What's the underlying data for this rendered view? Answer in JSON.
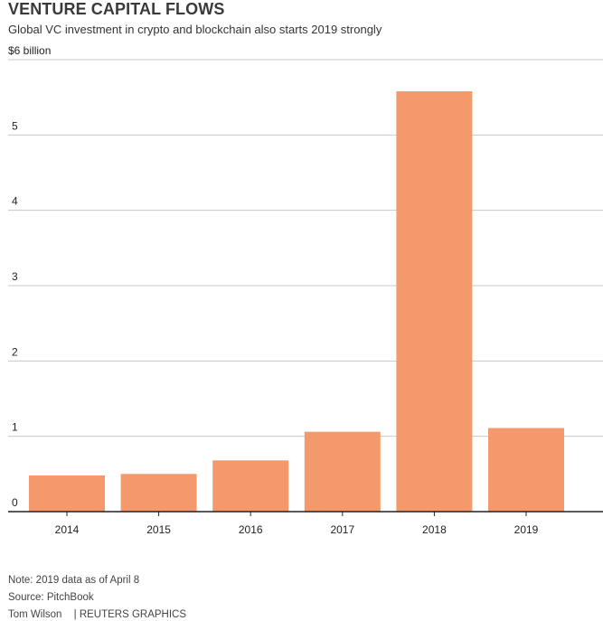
{
  "title": "VENTURE CAPITAL FLOWS",
  "subtitle": "Global VC investment in crypto and blockchain also starts 2019 strongly",
  "chart_data": {
    "type": "bar",
    "title": "VENTURE CAPITAL FLOWS",
    "subtitle": "Global VC investment in crypto and blockchain also starts 2019 strongly",
    "unit_label": "$6  billion",
    "categories": [
      "2014",
      "2015",
      "2016",
      "2017",
      "2018",
      "2019"
    ],
    "values": [
      0.48,
      0.5,
      0.68,
      1.06,
      5.58,
      1.11
    ],
    "ylim": [
      0,
      6
    ],
    "yticks": [
      {
        "value": 0,
        "label": "0"
      },
      {
        "value": 1,
        "label": "1"
      },
      {
        "value": 2,
        "label": "2"
      },
      {
        "value": 3,
        "label": "3"
      },
      {
        "value": 4,
        "label": "4"
      },
      {
        "value": 5,
        "label": "5"
      }
    ],
    "bar_color": "#f4996b",
    "grid": true,
    "xlabel": "",
    "ylabel": ""
  },
  "footer": {
    "note": "Note: 2019 data as of April 8",
    "source": "Source: PitchBook",
    "author": "Tom Wilson",
    "agency": "| REUTERS GRAPHICS"
  }
}
